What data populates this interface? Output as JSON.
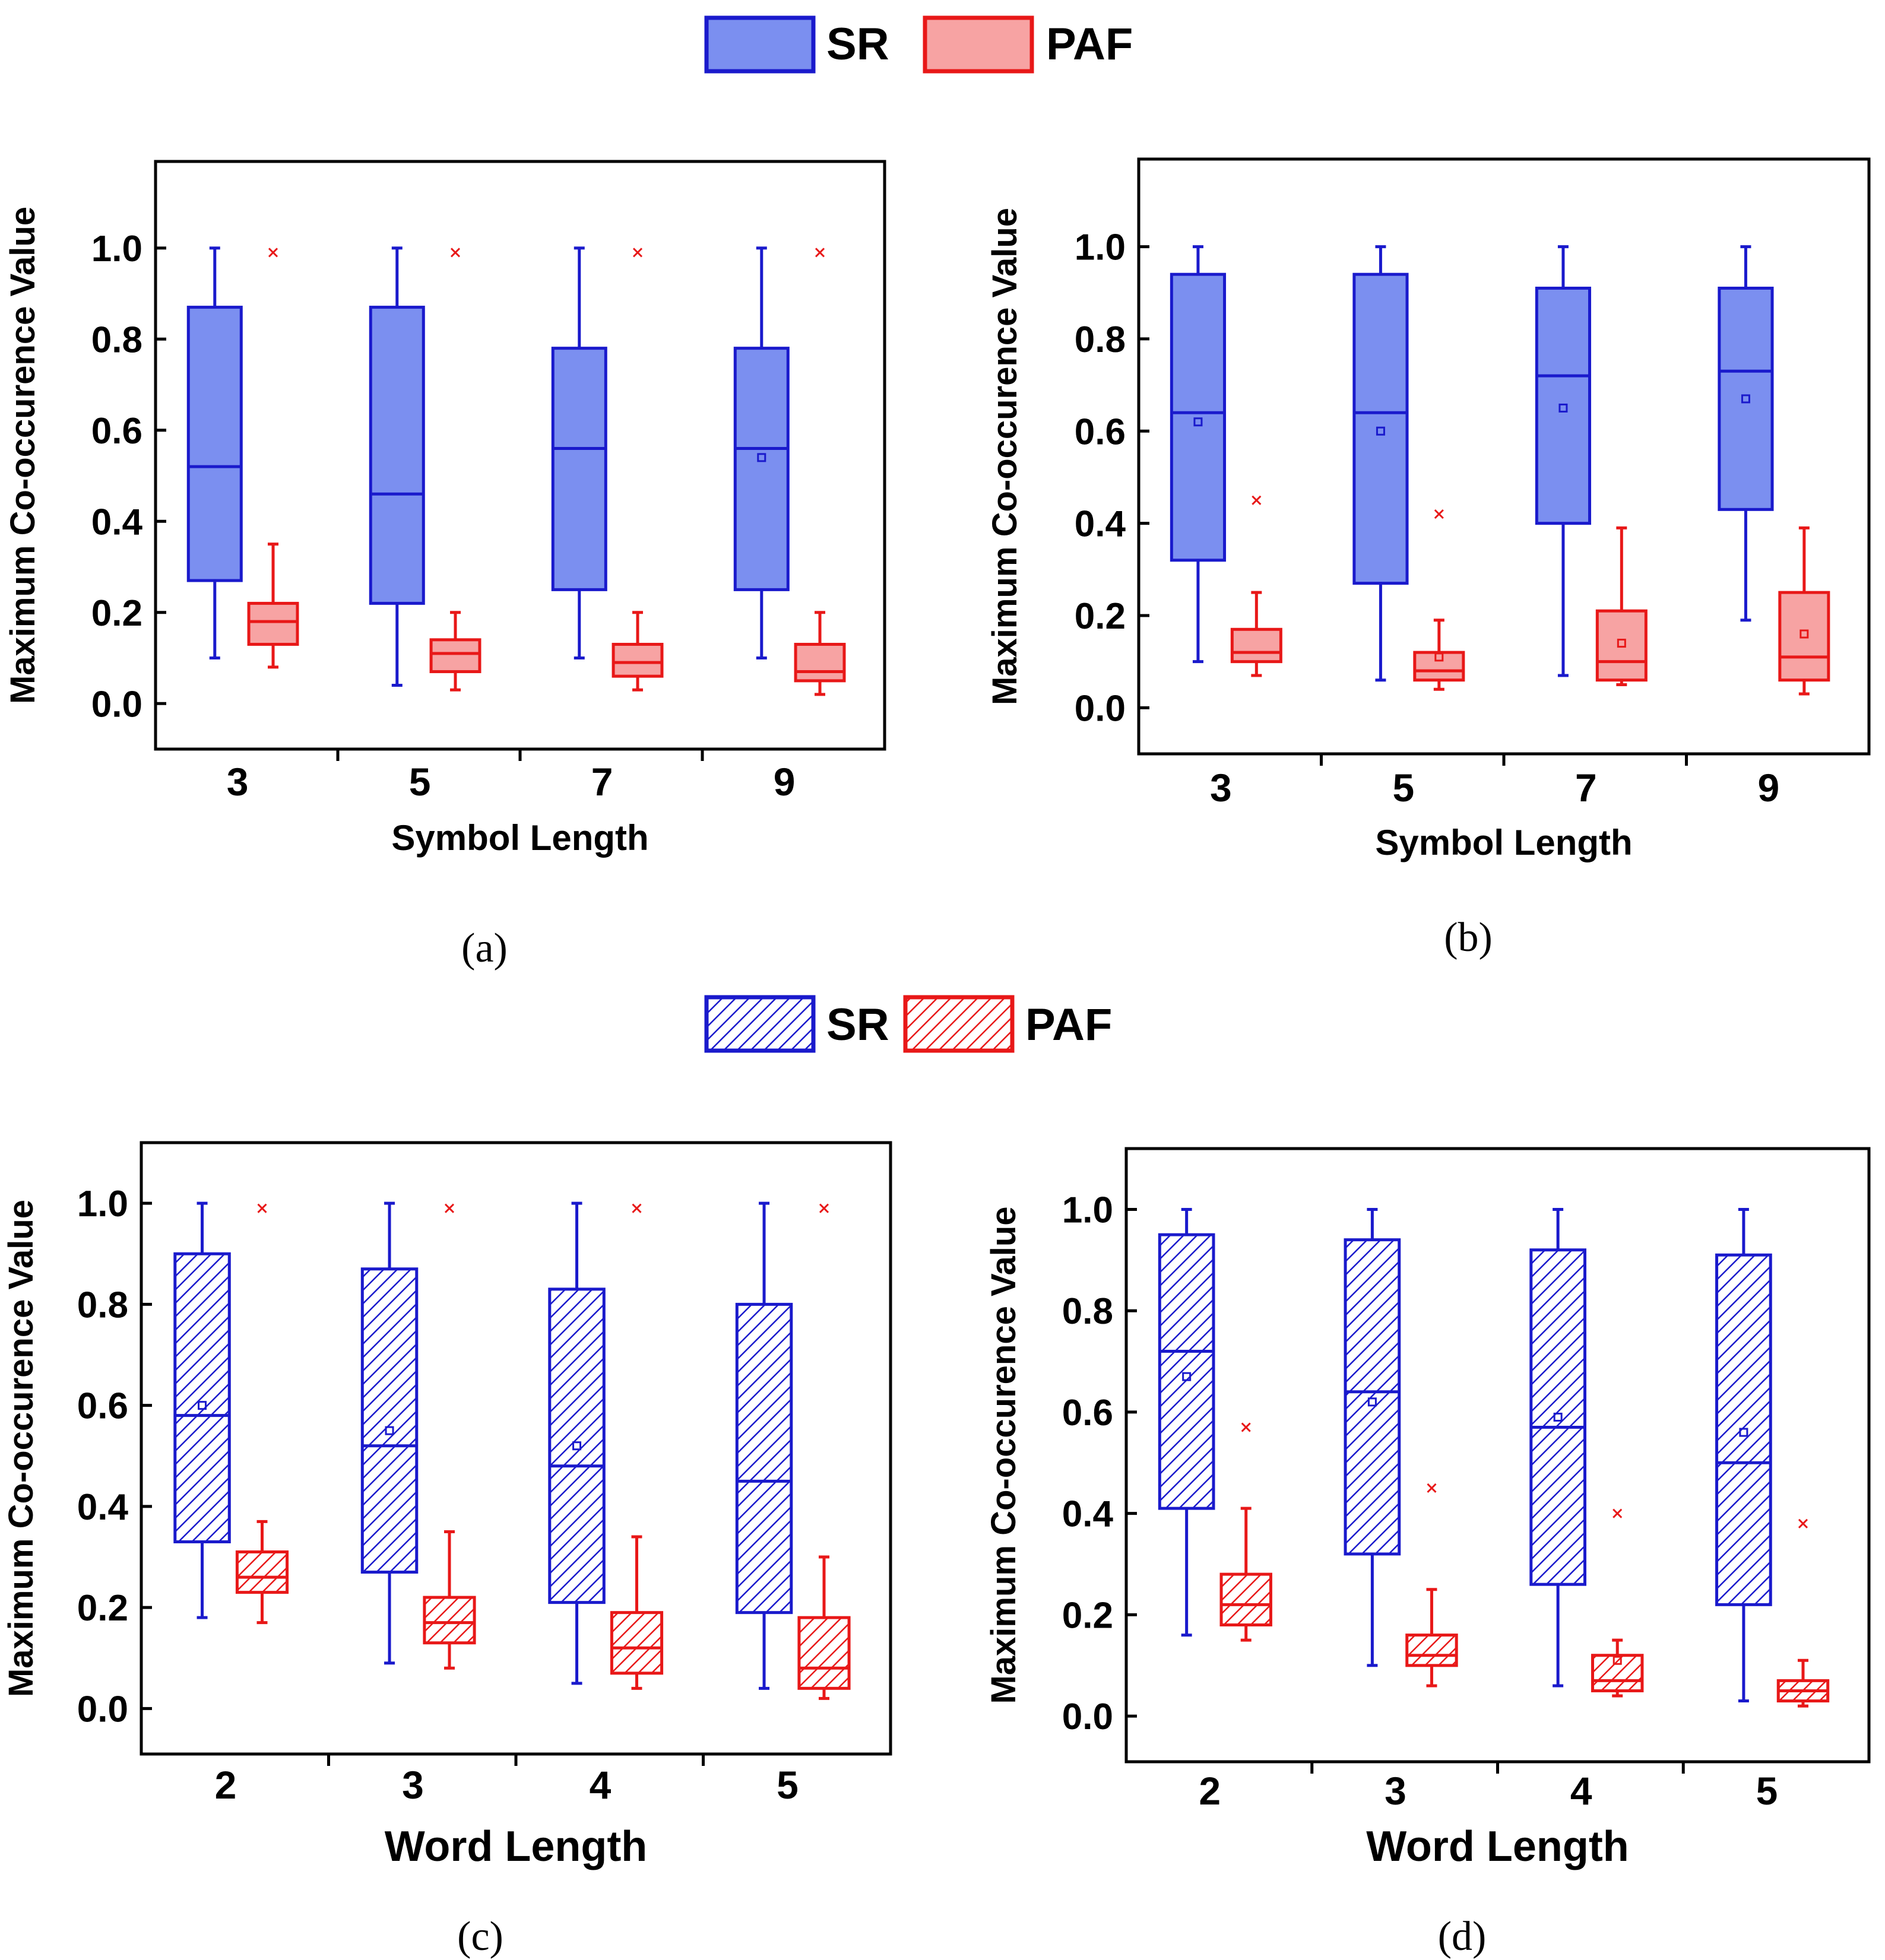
{
  "colors": {
    "sr_stroke": "#1a1acc",
    "sr_fill": "#7b8ff0",
    "paf_stroke": "#e81818",
    "paf_fill": "#f7a3a3",
    "hatch_bg": "#ffffff"
  },
  "legends": [
    {
      "style": "solid",
      "entries": [
        {
          "series": "sr",
          "label": "SR"
        },
        {
          "series": "paf",
          "label": "PAF"
        }
      ]
    },
    {
      "style": "hatch",
      "entries": [
        {
          "series": "sr",
          "label": "SR"
        },
        {
          "series": "paf",
          "label": "PAF"
        }
      ]
    }
  ],
  "chart_data": [
    {
      "panel_label": "(a)",
      "type": "box",
      "style": "solid",
      "xlabel": "Symbol Length",
      "ylabel": "Maximum Co-occurence Value",
      "ylim": [
        -0.1,
        1.19
      ],
      "yticks": [
        "0.0",
        "0.2",
        "0.4",
        "0.6",
        "0.8",
        "1.0"
      ],
      "categories": [
        "3",
        "5",
        "7",
        "9"
      ],
      "series": [
        {
          "name": "SR",
          "key": "sr",
          "boxes": [
            {
              "whisker_low": 0.1,
              "q1": 0.27,
              "median": 0.52,
              "q3": 0.87,
              "whisker_high": 1.0
            },
            {
              "whisker_low": 0.04,
              "q1": 0.22,
              "median": 0.46,
              "q3": 0.87,
              "whisker_high": 1.0
            },
            {
              "whisker_low": 0.1,
              "q1": 0.25,
              "median": 0.56,
              "q3": 0.78,
              "whisker_high": 1.0
            },
            {
              "whisker_low": 0.1,
              "q1": 0.25,
              "median": 0.56,
              "q3": 0.78,
              "whisker_high": 1.0,
              "mean": 0.54
            }
          ]
        },
        {
          "name": "PAF",
          "key": "paf",
          "boxes": [
            {
              "whisker_low": 0.08,
              "q1": 0.13,
              "median": 0.18,
              "q3": 0.22,
              "whisker_high": 0.35,
              "outliers": [
                0.99
              ]
            },
            {
              "whisker_low": 0.03,
              "q1": 0.07,
              "median": 0.11,
              "q3": 0.14,
              "whisker_high": 0.2,
              "outliers": [
                0.99
              ]
            },
            {
              "whisker_low": 0.03,
              "q1": 0.06,
              "median": 0.09,
              "q3": 0.13,
              "whisker_high": 0.2,
              "outliers": [
                0.99
              ]
            },
            {
              "whisker_low": 0.02,
              "q1": 0.05,
              "median": 0.07,
              "q3": 0.13,
              "whisker_high": 0.2,
              "outliers": [
                0.99
              ]
            }
          ]
        }
      ]
    },
    {
      "panel_label": "(b)",
      "type": "box",
      "style": "solid",
      "xlabel": "Symbol Length",
      "ylabel": "Maximum Co-occurence Value",
      "ylim": [
        -0.1,
        1.19
      ],
      "yticks": [
        "0.0",
        "0.2",
        "0.4",
        "0.6",
        "0.8",
        "1.0"
      ],
      "categories": [
        "3",
        "5",
        "7",
        "9"
      ],
      "series": [
        {
          "name": "SR",
          "key": "sr",
          "boxes": [
            {
              "whisker_low": 0.1,
              "q1": 0.32,
              "median": 0.64,
              "q3": 0.94,
              "whisker_high": 1.0,
              "mean": 0.62
            },
            {
              "whisker_low": 0.06,
              "q1": 0.27,
              "median": 0.64,
              "q3": 0.94,
              "whisker_high": 1.0,
              "mean": 0.6
            },
            {
              "whisker_low": 0.07,
              "q1": 0.4,
              "median": 0.72,
              "q3": 0.91,
              "whisker_high": 1.0,
              "mean": 0.65
            },
            {
              "whisker_low": 0.19,
              "q1": 0.43,
              "median": 0.73,
              "q3": 0.91,
              "whisker_high": 1.0,
              "mean": 0.67
            }
          ]
        },
        {
          "name": "PAF",
          "key": "paf",
          "boxes": [
            {
              "whisker_low": 0.07,
              "q1": 0.1,
              "median": 0.12,
              "q3": 0.17,
              "whisker_high": 0.25,
              "outliers": [
                0.45
              ]
            },
            {
              "whisker_low": 0.04,
              "q1": 0.06,
              "median": 0.08,
              "q3": 0.12,
              "whisker_high": 0.19,
              "outliers": [
                0.42
              ],
              "mean": 0.11
            },
            {
              "whisker_low": 0.05,
              "q1": 0.06,
              "median": 0.1,
              "q3": 0.21,
              "whisker_high": 0.39,
              "mean": 0.14
            },
            {
              "whisker_low": 0.03,
              "q1": 0.06,
              "median": 0.11,
              "q3": 0.25,
              "whisker_high": 0.39,
              "mean": 0.16
            }
          ]
        }
      ]
    },
    {
      "panel_label": "(c)",
      "type": "box",
      "style": "hatch",
      "xlabel": "Word Length",
      "ylabel": "Maximum Co-occurence Value",
      "ylim": [
        -0.09,
        1.12
      ],
      "yticks": [
        "0.0",
        "0.2",
        "0.4",
        "0.6",
        "0.8",
        "1.0"
      ],
      "categories": [
        "2",
        "3",
        "4",
        "5"
      ],
      "series": [
        {
          "name": "SR",
          "key": "sr",
          "boxes": [
            {
              "whisker_low": 0.18,
              "q1": 0.33,
              "median": 0.58,
              "q3": 0.9,
              "whisker_high": 1.0,
              "mean": 0.6
            },
            {
              "whisker_low": 0.09,
              "q1": 0.27,
              "median": 0.52,
              "q3": 0.87,
              "whisker_high": 1.0,
              "mean": 0.55
            },
            {
              "whisker_low": 0.05,
              "q1": 0.21,
              "median": 0.48,
              "q3": 0.83,
              "whisker_high": 1.0,
              "mean": 0.52
            },
            {
              "whisker_low": 0.04,
              "q1": 0.19,
              "median": 0.45,
              "q3": 0.8,
              "whisker_high": 1.0
            }
          ]
        },
        {
          "name": "PAF",
          "key": "paf",
          "boxes": [
            {
              "whisker_low": 0.17,
              "q1": 0.23,
              "median": 0.26,
              "q3": 0.31,
              "whisker_high": 0.37,
              "outliers": [
                0.99
              ]
            },
            {
              "whisker_low": 0.08,
              "q1": 0.13,
              "median": 0.17,
              "q3": 0.22,
              "whisker_high": 0.35,
              "outliers": [
                0.99
              ]
            },
            {
              "whisker_low": 0.04,
              "q1": 0.07,
              "median": 0.12,
              "q3": 0.19,
              "whisker_high": 0.34,
              "outliers": [
                0.99
              ]
            },
            {
              "whisker_low": 0.02,
              "q1": 0.04,
              "median": 0.08,
              "q3": 0.18,
              "whisker_high": 0.3,
              "outliers": [
                0.99
              ]
            }
          ]
        }
      ]
    },
    {
      "panel_label": "(d)",
      "type": "box",
      "style": "hatch",
      "xlabel": "Word Length",
      "ylabel": "Maximum Co-occurence Value",
      "ylim": [
        -0.09,
        1.12
      ],
      "yticks": [
        "0.0",
        "0.2",
        "0.4",
        "0.6",
        "0.8",
        "1.0"
      ],
      "categories": [
        "2",
        "3",
        "4",
        "5"
      ],
      "series": [
        {
          "name": "SR",
          "key": "sr",
          "boxes": [
            {
              "whisker_low": 0.16,
              "q1": 0.41,
              "median": 0.72,
              "q3": 0.95,
              "whisker_high": 1.0,
              "mean": 0.67
            },
            {
              "whisker_low": 0.1,
              "q1": 0.32,
              "median": 0.64,
              "q3": 0.94,
              "whisker_high": 1.0,
              "mean": 0.62
            },
            {
              "whisker_low": 0.06,
              "q1": 0.26,
              "median": 0.57,
              "q3": 0.92,
              "whisker_high": 1.0,
              "mean": 0.59
            },
            {
              "whisker_low": 0.03,
              "q1": 0.22,
              "median": 0.5,
              "q3": 0.91,
              "whisker_high": 1.0,
              "mean": 0.56
            }
          ]
        },
        {
          "name": "PAF",
          "key": "paf",
          "boxes": [
            {
              "whisker_low": 0.15,
              "q1": 0.18,
              "median": 0.22,
              "q3": 0.28,
              "whisker_high": 0.41,
              "outliers": [
                0.57
              ]
            },
            {
              "whisker_low": 0.06,
              "q1": 0.1,
              "median": 0.12,
              "q3": 0.16,
              "whisker_high": 0.25,
              "outliers": [
                0.45
              ]
            },
            {
              "whisker_low": 0.04,
              "q1": 0.05,
              "median": 0.07,
              "q3": 0.12,
              "whisker_high": 0.15,
              "outliers": [
                0.4
              ],
              "mean": 0.11
            },
            {
              "whisker_low": 0.02,
              "q1": 0.03,
              "median": 0.05,
              "q3": 0.07,
              "whisker_high": 0.11,
              "outliers": [
                0.38
              ]
            }
          ]
        }
      ]
    }
  ]
}
